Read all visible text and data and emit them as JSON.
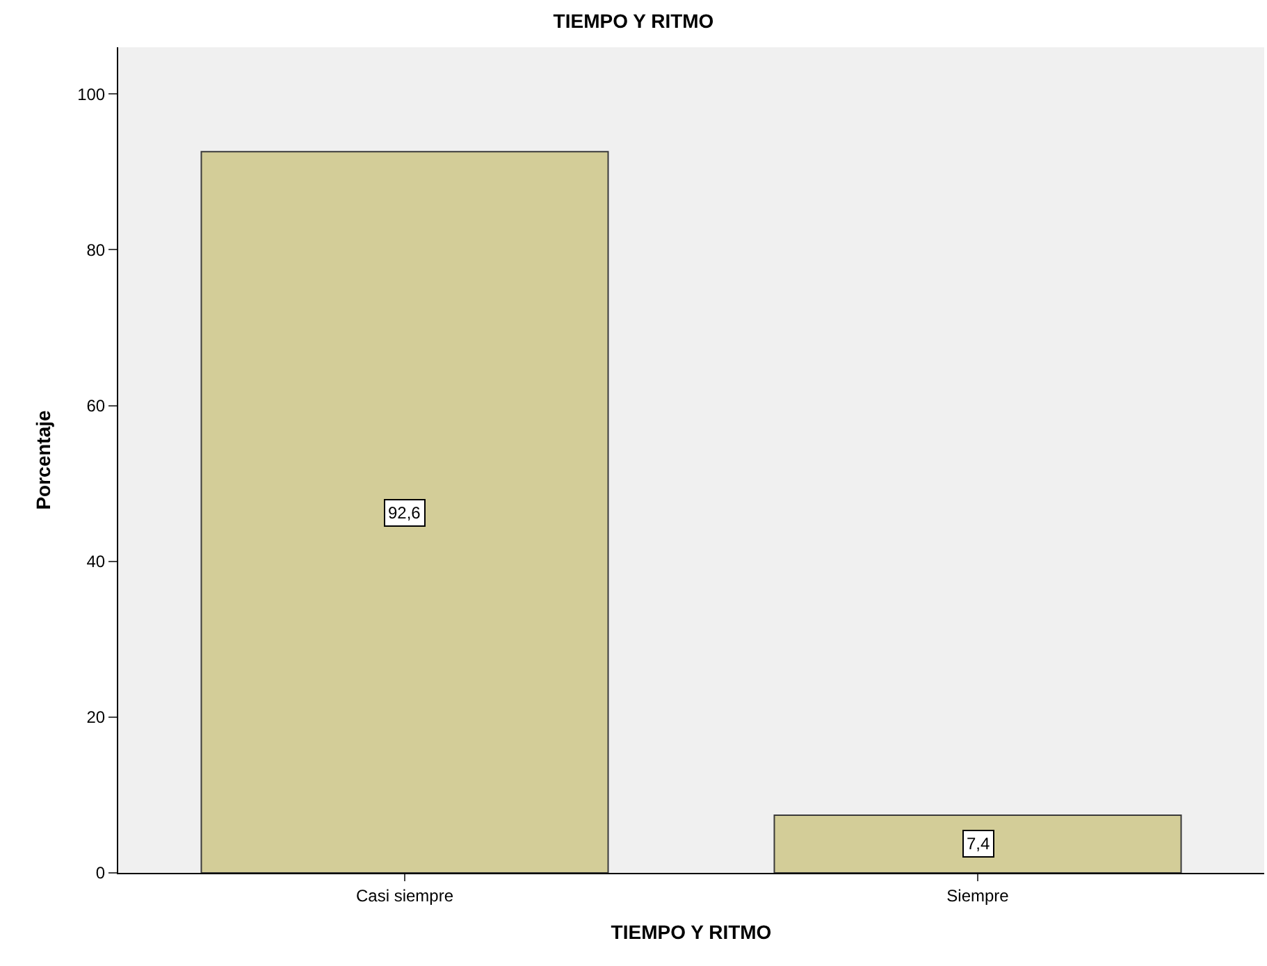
{
  "chart_data": {
    "type": "bar",
    "title": "TIEMPO Y RITMO",
    "xlabel": "TIEMPO Y RITMO",
    "ylabel": "Porcentaje",
    "categories": [
      "Casi siempre",
      "Siempre"
    ],
    "values": [
      92.6,
      7.4
    ],
    "value_labels": [
      "92,6",
      "7,4"
    ],
    "color": "#d3cd98",
    "ylim": [
      0,
      106
    ],
    "yticks": [
      0,
      20,
      40,
      60,
      80,
      100
    ],
    "grid": false,
    "legend": false
  }
}
